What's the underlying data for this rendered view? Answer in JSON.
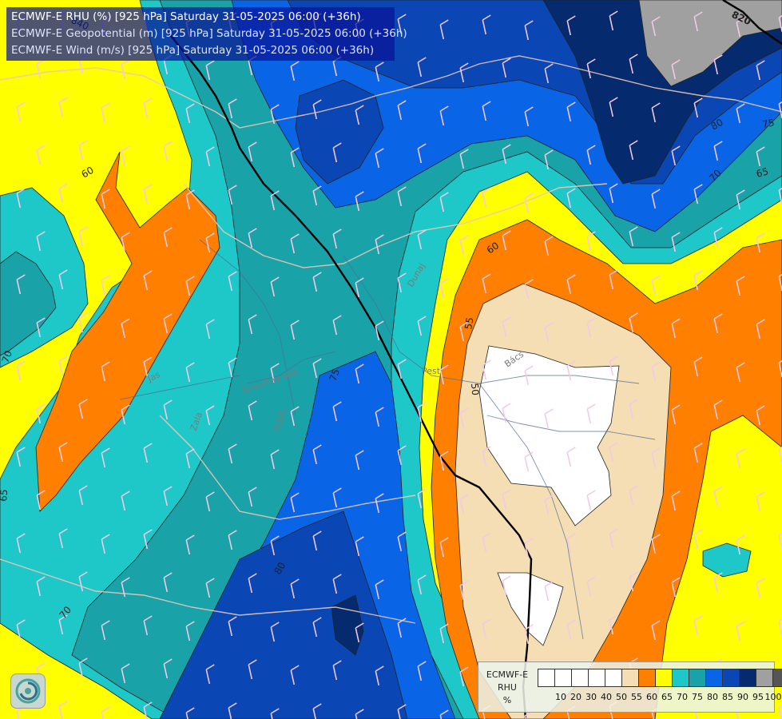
{
  "title": {
    "line1": "ECMWF-E RHU (%) [925 hPa] Saturday 31-05-2025 06:00 (+36h)",
    "line2": "ECMWF-E Geopotential (m) [925 hPa] Saturday 31-05-2025 06:00 (+36h)",
    "line3": "ECMWF-E Wind (m/s) [925 hPa] Saturday 31-05-2025 06:00 (+36h)"
  },
  "legend": {
    "model": "ECMWF-E",
    "variable": "RHU",
    "unit": "%",
    "classes": [
      {
        "label": "",
        "color": "#ffffff"
      },
      {
        "label": "10",
        "color": "#ffffff"
      },
      {
        "label": "20",
        "color": "#ffffff"
      },
      {
        "label": "30",
        "color": "#ffffff"
      },
      {
        "label": "40",
        "color": "#ffffff"
      },
      {
        "label": "50",
        "color": "#f5deb3"
      },
      {
        "label": "55",
        "color": "#ff8000"
      },
      {
        "label": "60",
        "color": "#ffff00"
      },
      {
        "label": "65",
        "color": "#1ec8c8"
      },
      {
        "label": "70",
        "color": "#19a3a8"
      },
      {
        "label": "75",
        "color": "#0a64e6"
      },
      {
        "label": "80",
        "color": "#0a46b4"
      },
      {
        "label": "85",
        "color": "#062a6e"
      },
      {
        "label": "90",
        "color": "#a0a0a0"
      },
      {
        "label": "95",
        "color": "#555555"
      },
      {
        "label": "100",
        "color": ""
      }
    ]
  },
  "contour_labels": {
    "geo_820": "820",
    "geo_840": "840",
    "l60a": "60",
    "l60b": "60",
    "l55": "55",
    "l50": "50",
    "l65a": "65",
    "l65b": "65",
    "l70a": "70",
    "l70b": "70",
    "l70c": "70",
    "l75a": "75",
    "l75b": "75",
    "l80a": "80",
    "l80b": "80"
  },
  "place_labels": {
    "jas": "Jas",
    "zala": "Zala",
    "granicni": "Graničný sklo",
    "raba": "Rába",
    "dunaj": "Dunaj",
    "pest": "Pest",
    "baks": "Bács"
  },
  "colors": {
    "white": "#ffffff",
    "wheat": "#f5deb3",
    "orange": "#ff8000",
    "yellow": "#ffff00",
    "cyan": "#1ec8c8",
    "teal": "#19a3a8",
    "blue": "#0a64e6",
    "mid_blue": "#0a46b4",
    "navy": "#062a6e",
    "gray": "#a0a0a0"
  }
}
